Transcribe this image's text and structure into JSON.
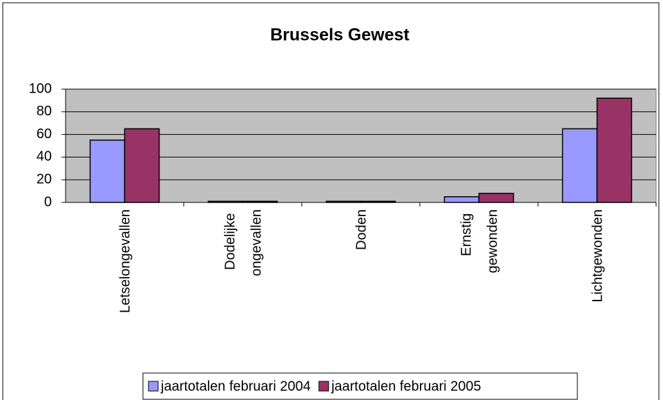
{
  "chart_data": {
    "type": "bar",
    "title": "Brussels Gewest",
    "categories": [
      "Letselongevallen",
      "Dodelijke ongevallen",
      "Doden",
      "Ernstig gewonden",
      "Lichtgewonden"
    ],
    "series": [
      {
        "name": "jaartotalen februari 2004",
        "color": "#9999ff",
        "values": [
          55,
          1,
          1,
          5,
          65
        ]
      },
      {
        "name": "jaartotalen februari 2005",
        "color": "#993366",
        "values": [
          65,
          1,
          1,
          8,
          92
        ]
      }
    ],
    "ylim": [
      0,
      100
    ],
    "yticks": [
      0,
      20,
      40,
      60,
      80,
      100
    ],
    "grid": true,
    "plot_background": "#c0c0c0",
    "legend": "bottom"
  }
}
